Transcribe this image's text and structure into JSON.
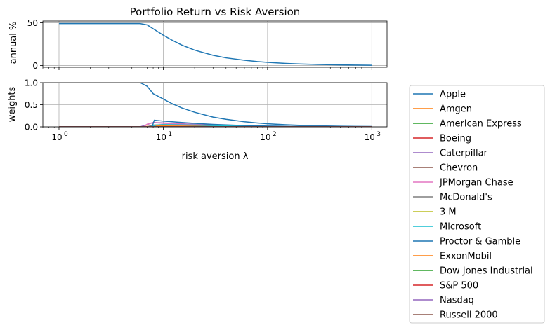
{
  "chart_data": [
    {
      "type": "line",
      "title": "Portfolio Return vs Risk Aversion",
      "xlabel": "",
      "ylabel": "annual %",
      "xscale": "log",
      "xlim": [
        0.7,
        1400
      ],
      "ylim": [
        -2,
        52
      ],
      "yticks": [
        0,
        50
      ],
      "xticks": [
        1,
        10,
        100,
        1000
      ],
      "grid": true,
      "series": [
        {
          "color": "#1f77b4",
          "x": [
            1,
            2,
            4,
            6,
            7,
            8,
            10,
            12,
            15,
            20,
            30,
            40,
            60,
            80,
            100,
            150,
            200,
            300,
            500,
            700,
            1000
          ],
          "y": [
            49,
            49,
            49,
            49,
            47.5,
            43,
            35.5,
            30,
            24,
            18,
            12,
            9,
            6.2,
            4.6,
            3.7,
            2.5,
            1.9,
            1.3,
            0.8,
            0.6,
            0.4
          ]
        }
      ]
    },
    {
      "type": "line",
      "xlabel": "risk aversion λ",
      "ylabel": "weights",
      "xscale": "log",
      "xlim": [
        0.7,
        1400
      ],
      "ylim": [
        0,
        1
      ],
      "yticks": [
        0.0,
        0.5,
        1.0
      ],
      "ytick_labels": [
        "0.0",
        "0.5",
        "1.0"
      ],
      "xticks": [
        1,
        10,
        100,
        1000
      ],
      "xtick_labels": [
        "10",
        "10",
        "10",
        "10"
      ],
      "xtick_exponents": [
        "0",
        "1",
        "2",
        "3"
      ],
      "grid": true,
      "legend_position": "outside-right",
      "series": [
        {
          "name": "Apple",
          "color": "#1f77b4",
          "x": [
            1,
            2,
            4,
            6,
            7,
            8,
            10,
            12,
            15,
            20,
            30,
            40,
            60,
            80,
            100,
            150,
            200,
            300,
            500,
            700,
            1000
          ],
          "y": [
            1,
            1,
            1,
            1,
            0.92,
            0.75,
            0.63,
            0.53,
            0.43,
            0.33,
            0.22,
            0.17,
            0.115,
            0.087,
            0.07,
            0.047,
            0.035,
            0.024,
            0.014,
            0.01,
            0.007
          ]
        },
        {
          "name": "Amgen",
          "color": "#ff7f0e",
          "x": [
            1,
            6,
            7,
            8,
            10,
            20,
            50,
            100,
            1000
          ],
          "y": [
            0,
            0,
            0.01,
            0.02,
            0.02,
            0.015,
            0.008,
            0.005,
            0.001
          ]
        },
        {
          "name": "American Express",
          "color": "#2ca02c",
          "x": [
            1,
            1000
          ],
          "y": [
            0,
            0
          ]
        },
        {
          "name": "Boeing",
          "color": "#d62728",
          "x": [
            1,
            1000
          ],
          "y": [
            0,
            0
          ]
        },
        {
          "name": "Caterpillar",
          "color": "#9467bd",
          "x": [
            1,
            6,
            7,
            8,
            10,
            15,
            20,
            30,
            50,
            100,
            200,
            1000
          ],
          "y": [
            0,
            0,
            0.05,
            0.1,
            0.09,
            0.07,
            0.055,
            0.04,
            0.025,
            0.013,
            0.007,
            0.001
          ]
        },
        {
          "name": "Chevron",
          "color": "#8c564b",
          "x": [
            1,
            1000
          ],
          "y": [
            0,
            0
          ]
        },
        {
          "name": "JPMorgan Chase",
          "color": "#e377c2",
          "x": [
            1,
            6.5,
            7,
            8,
            10,
            15,
            30,
            100,
            1000
          ],
          "y": [
            0,
            0,
            0.06,
            0.1,
            0.08,
            0.06,
            0.03,
            0.01,
            0.001
          ]
        },
        {
          "name": "McDonald's",
          "color": "#7f7f7f",
          "x": [
            1,
            7,
            8,
            10,
            20,
            50,
            100,
            1000
          ],
          "y": [
            0,
            0,
            0.04,
            0.05,
            0.035,
            0.02,
            0.01,
            0.001
          ]
        },
        {
          "name": "3 M",
          "color": "#bcbd22",
          "x": [
            1,
            1000
          ],
          "y": [
            0,
            0
          ]
        },
        {
          "name": "Microsoft",
          "color": "#17becf",
          "x": [
            1,
            7.5,
            8.5,
            10,
            20,
            50,
            100,
            1000
          ],
          "y": [
            0,
            0,
            0.04,
            0.05,
            0.04,
            0.02,
            0.01,
            0.001
          ]
        },
        {
          "name": "Proctor & Gamble",
          "color": "#1f77b4",
          "x": [
            1,
            7.8,
            8.2,
            10,
            15,
            20,
            30,
            50,
            100,
            200,
            1000
          ],
          "y": [
            0,
            0,
            0.15,
            0.13,
            0.1,
            0.08,
            0.055,
            0.035,
            0.018,
            0.009,
            0.002
          ]
        },
        {
          "name": "ExxonMobil",
          "color": "#ff7f0e",
          "x": [
            1,
            1000
          ],
          "y": [
            0,
            0
          ]
        },
        {
          "name": "Dow Jones Industrial",
          "color": "#2ca02c",
          "x": [
            1,
            1000
          ],
          "y": [
            0,
            0
          ]
        },
        {
          "name": "S&P 500",
          "color": "#d62728",
          "x": [
            1,
            1000
          ],
          "y": [
            0,
            0
          ]
        },
        {
          "name": "Nasdaq",
          "color": "#9467bd",
          "x": [
            1,
            1000
          ],
          "y": [
            0,
            0
          ]
        },
        {
          "name": "Russell 2000",
          "color": "#8c564b",
          "x": [
            1,
            1000
          ],
          "y": [
            0,
            0
          ]
        }
      ]
    }
  ]
}
